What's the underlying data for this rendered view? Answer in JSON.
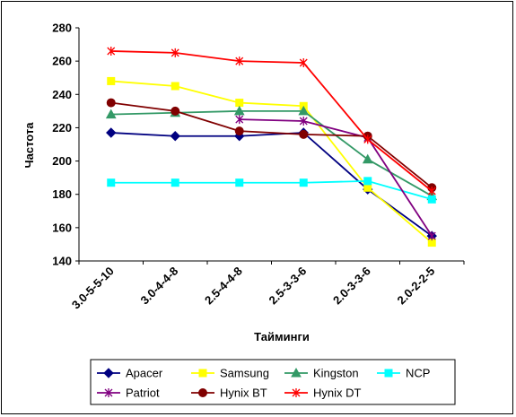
{
  "chart_data": {
    "type": "line",
    "title": "",
    "xlabel": "Тайминги",
    "ylabel": "Частота",
    "categories": [
      "3.0-5-5-10",
      "3.0-4-4-8",
      "2.5-4-4-8",
      "2.5-3-3-6",
      "2.0-3-3-6",
      "2.0-2-2-5"
    ],
    "ylim": [
      140,
      280
    ],
    "yticks": [
      "140",
      "160",
      "180",
      "200",
      "220",
      "240",
      "260",
      "280"
    ],
    "grid": false,
    "legend_position": "bottom",
    "series": [
      {
        "name": "Apacer",
        "color": "#000080",
        "marker": "diamond",
        "values": [
          217,
          215,
          215,
          217,
          183,
          155
        ]
      },
      {
        "name": "Samsung",
        "color": "#ffff00",
        "marker": "square",
        "values": [
          248,
          245,
          235,
          233,
          184,
          151
        ]
      },
      {
        "name": "Kingston",
        "color": "#339966",
        "marker": "triangle",
        "values": [
          228,
          229,
          230,
          230,
          201,
          179
        ]
      },
      {
        "name": "NCP",
        "color": "#00ffff",
        "marker": "square",
        "values": [
          187,
          187,
          187,
          187,
          188,
          177
        ]
      },
      {
        "name": "Patriot",
        "color": "#800080",
        "marker": "star",
        "values": [
          null,
          null,
          225,
          224,
          214,
          155
        ]
      },
      {
        "name": "Hynix BT",
        "color": "#800000",
        "marker": "circle",
        "values": [
          235,
          230,
          218,
          216,
          215,
          184
        ]
      },
      {
        "name": "Hynix DT",
        "color": "#ff0000",
        "marker": "star",
        "values": [
          266,
          265,
          260,
          259,
          213,
          182
        ]
      }
    ]
  }
}
